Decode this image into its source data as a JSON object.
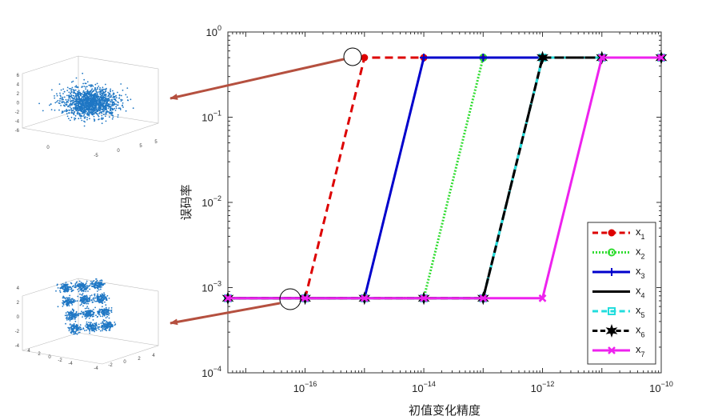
{
  "chart_data": {
    "type": "line",
    "title": "",
    "xlabel": "初值变化精度",
    "ylabel": "误码率",
    "xscale": "log",
    "yscale": "log",
    "xlim": [
      5e-18,
      1e-10
    ],
    "ylim": [
      0.0001,
      1
    ],
    "xticks": [
      {
        "base": "10",
        "exp": "−16",
        "value": 1e-16
      },
      {
        "base": "10",
        "exp": "−14",
        "value": 1e-14
      },
      {
        "base": "10",
        "exp": "−12",
        "value": 1e-12
      },
      {
        "base": "10",
        "exp": "−10",
        "value": 1e-10
      }
    ],
    "yticks": [
      {
        "base": "10",
        "exp": "0",
        "value": 1
      },
      {
        "base": "10",
        "exp": "−1",
        "value": 0.1
      },
      {
        "base": "10",
        "exp": "−2",
        "value": 0.01
      },
      {
        "base": "10",
        "exp": "−3",
        "value": 0.001
      },
      {
        "base": "10",
        "exp": "−4",
        "value": 0.0001
      }
    ],
    "grid": false,
    "legend_position": "bottom-right",
    "x": [
      5e-18,
      1e-16,
      1e-15,
      1e-14,
      1e-13,
      1e-12,
      1e-11,
      1e-10
    ],
    "series": [
      {
        "name": "x",
        "sub": "1",
        "color": "#dd0000",
        "dash": "10,6",
        "marker": "dot",
        "values": [
          0.00075,
          0.00075,
          0.5,
          0.5,
          0.5,
          0.5,
          0.5,
          0.5
        ]
      },
      {
        "name": "x",
        "sub": "2",
        "color": "#33dd33",
        "dash": "2,2",
        "marker": "circle",
        "values": [
          0.00075,
          0.00075,
          0.00075,
          0.00075,
          0.5,
          0.5,
          0.5,
          0.5
        ]
      },
      {
        "name": "x",
        "sub": "3",
        "color": "#0000cc",
        "dash": "",
        "marker": "plus",
        "values": [
          0.00075,
          0.00075,
          0.00075,
          0.5,
          0.5,
          0.5,
          0.5,
          0.5
        ]
      },
      {
        "name": "x",
        "sub": "4",
        "color": "#000000",
        "dash": "",
        "marker": "none",
        "values": [
          0.00075,
          0.00075,
          0.00075,
          0.00075,
          0.00075,
          0.5,
          0.5,
          0.5
        ]
      },
      {
        "name": "x",
        "sub": "5",
        "color": "#22dddd",
        "dash": "10,6",
        "marker": "square",
        "values": [
          0.00075,
          0.00075,
          0.00075,
          0.00075,
          0.00075,
          0.5,
          0.5,
          0.5
        ]
      },
      {
        "name": "x",
        "sub": "6",
        "color": "#000000",
        "dash": "9,5",
        "marker": "star",
        "values": [
          0.00075,
          0.00075,
          0.00075,
          0.00075,
          0.00075,
          0.5,
          0.5,
          0.5
        ]
      },
      {
        "name": "x",
        "sub": "7",
        "color": "#ee22ee",
        "dash": "",
        "marker": "x",
        "values": [
          0.00075,
          0.00075,
          0.00075,
          0.00075,
          0.00075,
          0.00075,
          0.5,
          0.5
        ]
      }
    ]
  },
  "insets": {
    "top": {
      "y_ticks": [
        "6",
        "4",
        "2",
        "0",
        "-2",
        "-4",
        "-6"
      ],
      "x_ticks": [
        "-5",
        "0",
        "5"
      ],
      "z_ticks": [
        "0",
        "5"
      ]
    },
    "bottom": {
      "y_ticks": [
        "4",
        "2",
        "0",
        "-2",
        "-4"
      ],
      "x_ticks": [
        "4",
        "2",
        "0",
        "-2",
        "-4"
      ],
      "z_ticks": [
        "-4",
        "-2",
        "0",
        "2",
        "4"
      ]
    }
  },
  "colors": {
    "arrow": "#b5503f",
    "scatter": "#1f77c4",
    "highlight": "#000000"
  }
}
